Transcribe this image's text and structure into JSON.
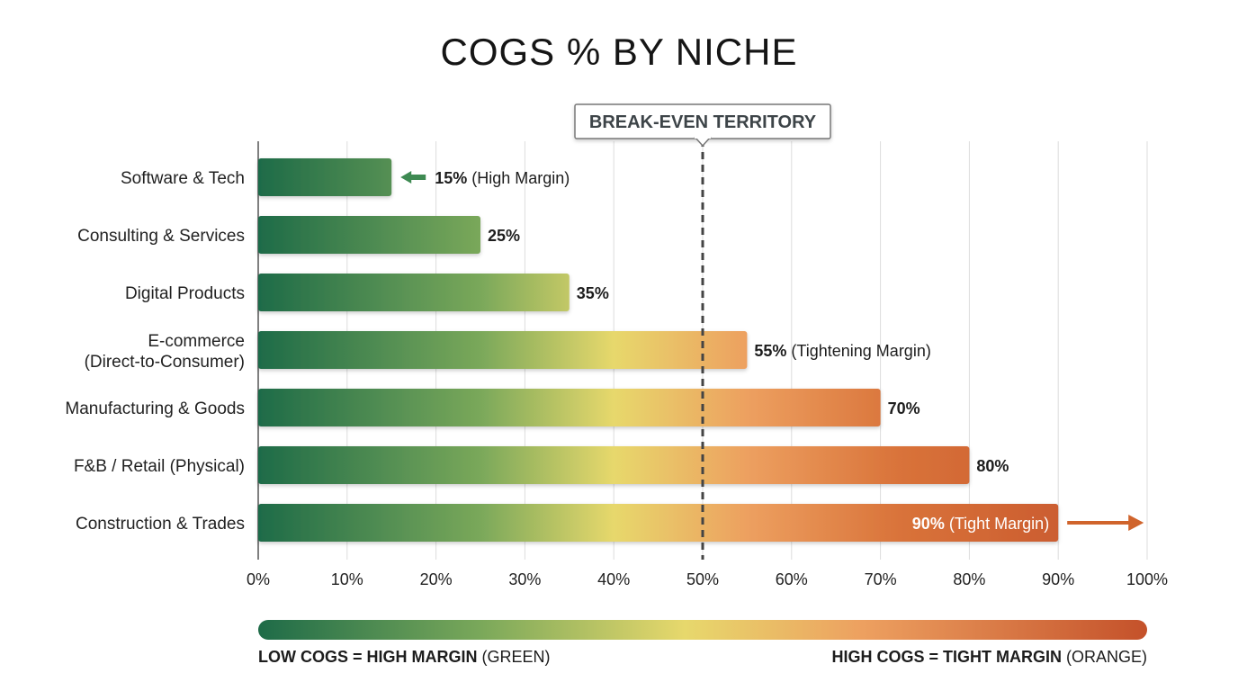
{
  "chart_data": {
    "type": "bar",
    "orientation": "horizontal",
    "title": "COGS % BY NICHE",
    "categories": [
      "Software & Tech",
      "Consulting & Services",
      "Digital Products",
      "E-commerce\n(Direct-to-Consumer)",
      "Manufacturing & Goods",
      "F&B / Retail (Physical)",
      "Construction & Trades"
    ],
    "values": [
      15,
      25,
      35,
      55,
      70,
      80,
      90
    ],
    "value_labels": [
      "15%",
      "25%",
      "35%",
      "55%",
      "70%",
      "80%",
      "90%"
    ],
    "annotations": [
      "(High Margin)",
      "",
      "",
      "(Tightening Margin)",
      "",
      "",
      "(Tight Margin)"
    ],
    "xlim": [
      0,
      100
    ],
    "x_ticks": [
      "0%",
      "10%",
      "20%",
      "30%",
      "40%",
      "50%",
      "60%",
      "70%",
      "80%",
      "90%",
      "100%"
    ],
    "reference_line": {
      "value": 50,
      "label": "BREAK-EVEN TERRITORY"
    },
    "grid": "vertical",
    "legend": {
      "left_bold": "LOW COGS = HIGH MARGIN",
      "left_rest": " (GREEN)",
      "right_bold": "HIGH COGS = TIGHT MARGIN",
      "right_rest": " (ORANGE)"
    },
    "colors": {
      "low": "#1e6b48",
      "mid": "#e7d86c",
      "high": "#c4512a",
      "green_arrow": "#3e8a52",
      "orange_arrow": "#d0642c",
      "grid": "#dddddd",
      "reference": "#444444"
    }
  }
}
